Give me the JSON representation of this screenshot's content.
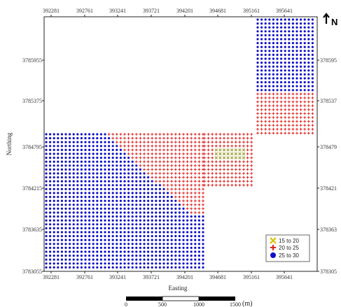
{
  "map": {
    "x_ticks": [
      "392281",
      "392761",
      "393241",
      "393721",
      "394201",
      "394681",
      "395161",
      "395641"
    ],
    "y_ticks": [
      "3785955",
      "3785375",
      "3784795",
      "3784215",
      "3783635",
      "3783055"
    ],
    "right_y_ticks": [
      "378595",
      "378537",
      "378479",
      "378421",
      "378363",
      "378305"
    ],
    "x_title": "Easting",
    "y_title": "Northing",
    "north_label": "N",
    "legend": [
      {
        "label": "15  to  20",
        "color": "#d4c200",
        "symbol": "x-icon"
      },
      {
        "label": "20  to  25",
        "color": "#e02020",
        "symbol": "plus-icon"
      },
      {
        "label": "25  to  30",
        "color": "#1010c8",
        "symbol": "dot-icon"
      }
    ],
    "scale_bar": {
      "labels": [
        "0",
        "500",
        "1000",
        "1500"
      ],
      "unit": "(m)"
    },
    "class_colors": {
      "low": "#9a9a30",
      "mid": "#e02020",
      "high": "#1010c8"
    }
  }
}
